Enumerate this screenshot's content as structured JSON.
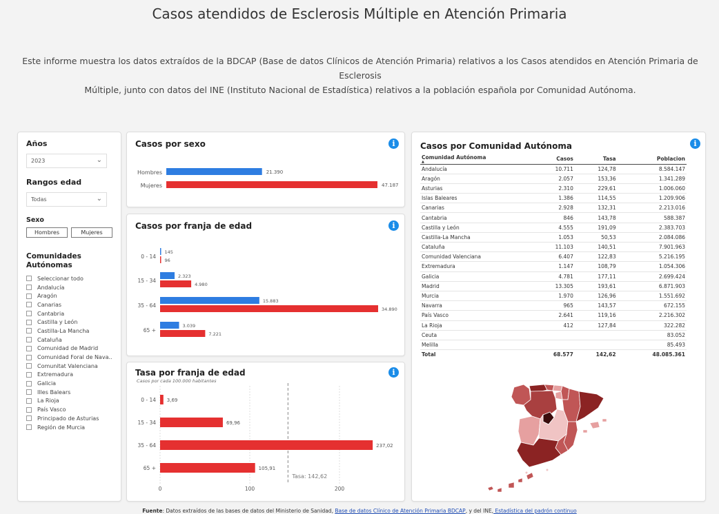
{
  "header": {
    "title": "Casos atendidos de Esclerosis Múltiple en Atención Primaria",
    "intro_line1": "Este informe muestra los datos extraídos de la BDCAP (Base de datos Clínicos de Atención Primaria) relativos a los Casos atendidos en Atención Primaria de Esclerosis",
    "intro_line2": "Múltiple, junto con datos del INE (Instituto Nacional de Estadística) relativos a la población española por Comunidad Autónoma."
  },
  "filters": {
    "years_label": "Años",
    "years_value": "2023",
    "age_label": "Rangos edad",
    "age_value": "Todas",
    "sex_label": "Sexo",
    "sex_men": "Hombres",
    "sex_women": "Mujeres",
    "ccaa_label": "Comunidades Autónomas",
    "ccaa_items": [
      "Seleccionar todo",
      "Andalucía",
      "Aragón",
      "Canarias",
      "Cantabria",
      "Castilla y León",
      "Castilla-La Mancha",
      "Cataluña",
      "Comunidad de Madrid",
      "Comunidad Foral de Nava...",
      "Comunitat Valenciana",
      "Extremadura",
      "Galicia",
      "Illes Balears",
      "La Rioja",
      "País Vasco",
      "Principado de Asturias",
      "Región de Murcia"
    ]
  },
  "sex_chart": {
    "title": "Casos por sexo",
    "chart_data": {
      "type": "bar",
      "orientation": "horizontal",
      "categories": [
        "Hombres",
        "Mujeres"
      ],
      "values": [
        21390,
        47187
      ],
      "value_labels": [
        "21.390",
        "47.187"
      ],
      "colors": [
        "#2e7de1",
        "#e53030"
      ]
    }
  },
  "age_chart": {
    "title": "Casos por franja de edad",
    "chart_data": {
      "type": "bar",
      "orientation": "horizontal",
      "categories": [
        "0 - 14",
        "15 - 34",
        "35 - 64",
        "65 +"
      ],
      "series": [
        {
          "values": [
            145,
            2323,
            15883,
            3039
          ],
          "labels": [
            "145",
            "2.323",
            "15.883",
            "3.039"
          ],
          "color": "#2e7de1"
        },
        {
          "values": [
            96,
            4980,
            34890,
            7221
          ],
          "labels": [
            "96",
            "4.980",
            "34.890",
            "7.221"
          ],
          "color": "#e53030"
        }
      ]
    }
  },
  "rate_chart": {
    "title": "Tasa por franja de edad",
    "subtitle": "Casos por cada 100.000 habitantes",
    "avg_label": "Tasa: 142,62",
    "chart_data": {
      "type": "bar",
      "orientation": "horizontal",
      "categories": [
        "0 - 14",
        "15 - 34",
        "35 - 64",
        "65 +"
      ],
      "values": [
        3.69,
        69.96,
        237.02,
        105.91
      ],
      "value_labels": [
        "3,69",
        "69,96",
        "237,02",
        "105,91"
      ],
      "average": 142.62,
      "xlim": [
        0,
        240
      ],
      "xticks": [
        0,
        100,
        200
      ],
      "color": "#e53030"
    }
  },
  "ccaa_table": {
    "title": "Casos por Comunidad Autónoma",
    "headers": [
      "Comunidad Autónoma",
      "Casos",
      "Tasa",
      "Poblacion"
    ],
    "rows": [
      [
        "Andalucía",
        "10.711",
        "124,78",
        "8.584.147"
      ],
      [
        "Aragón",
        "2.057",
        "153,36",
        "1.341.289"
      ],
      [
        "Asturias",
        "2.310",
        "229,61",
        "1.006.060"
      ],
      [
        "Islas Baleares",
        "1.386",
        "114,55",
        "1.209.906"
      ],
      [
        "Canarias",
        "2.928",
        "132,31",
        "2.213.016"
      ],
      [
        "Cantabria",
        "846",
        "143,78",
        "588.387"
      ],
      [
        "Castilla y León",
        "4.555",
        "191,09",
        "2.383.703"
      ],
      [
        "Castilla-La Mancha",
        "1.053",
        "50,53",
        "2.084.086"
      ],
      [
        "Cataluña",
        "11.103",
        "140,51",
        "7.901.963"
      ],
      [
        "Comunidad Valenciana",
        "6.407",
        "122,83",
        "5.216.195"
      ],
      [
        "Extremadura",
        "1.147",
        "108,79",
        "1.054.306"
      ],
      [
        "Galicia",
        "4.781",
        "177,11",
        "2.699.424"
      ],
      [
        "Madrid",
        "13.305",
        "193,61",
        "6.871.903"
      ],
      [
        "Murcia",
        "1.970",
        "126,96",
        "1.551.692"
      ],
      [
        "Navarra",
        "965",
        "143,57",
        "672.155"
      ],
      [
        "País Vasco",
        "2.641",
        "119,16",
        "2.216.302"
      ],
      [
        "La Rioja",
        "412",
        "127,84",
        "322.282"
      ],
      [
        "Ceuta",
        "",
        "",
        "83.052"
      ],
      [
        "Melilla",
        "",
        "",
        "85.493"
      ]
    ],
    "total": [
      "Total",
      "68.577",
      "142,62",
      "48.085.361"
    ]
  },
  "map_colors": {
    "dark": "#8b2323",
    "mid": "#c05656",
    "light": "#e6a0a0",
    "pale": "#f0c4c4",
    "center": "#3a0c0c"
  },
  "footer": {
    "label": "Fuente",
    "text": ": Datos extraídos de las bases de datos del Ministerio de Sanidad,",
    "link1": "Base de datos Clínico de Atención Primaria BDCAP",
    "mid": ", y del INE,",
    "link2": " Estadística del padrón continuo"
  }
}
